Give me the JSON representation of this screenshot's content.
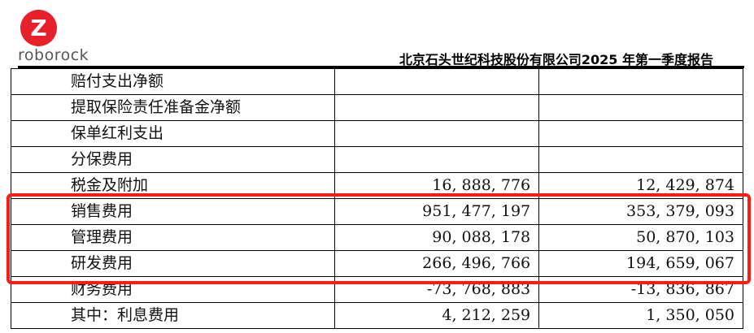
{
  "header": {
    "logo_letter": "Z",
    "logo_text": "roborock",
    "title": "北京石头世纪科技股份有限公司2025 年第一季度报告",
    "brand_color": "#e8202a"
  },
  "highlight_color": "#ff1a12",
  "rows": [
    {
      "label": "赔付支出净额",
      "current": "",
      "previous": ""
    },
    {
      "label": "提取保险责任准备金净额",
      "current": "",
      "previous": ""
    },
    {
      "label": "保单红利支出",
      "current": "",
      "previous": ""
    },
    {
      "label": "分保费用",
      "current": "",
      "previous": ""
    },
    {
      "label": "税金及附加",
      "current": "16, 888, 776",
      "previous": "12, 429, 874"
    },
    {
      "label": "销售费用",
      "current": "951, 477, 197",
      "previous": "353, 379, 093"
    },
    {
      "label": "管理费用",
      "current": "90, 088, 178",
      "previous": "50, 870, 103"
    },
    {
      "label": "研发费用",
      "current": "266, 496, 766",
      "previous": "194, 659, 067"
    },
    {
      "label": "财务费用",
      "current": "-73, 768, 883",
      "previous": "-13, 836, 867"
    },
    {
      "label": "其中：利息费用",
      "current": "4, 212, 259",
      "previous": "1, 350, 050"
    }
  ]
}
